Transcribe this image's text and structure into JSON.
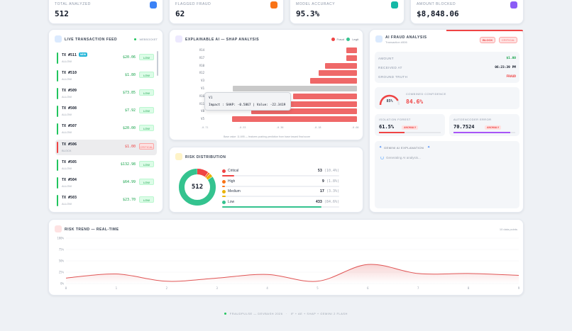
{
  "stats": [
    {
      "label": "TOTAL ANALYZED",
      "value": "512",
      "color": "#3b82f6"
    },
    {
      "label": "FLAGGED FRAUD",
      "value": "62",
      "color": "#f97316"
    },
    {
      "label": "MODEL ACCURACY",
      "value": "95.3%",
      "color": "#14b8a6"
    },
    {
      "label": "AMOUNT BLOCKED",
      "value": "$8,848.06",
      "color": "#8b5cf6"
    }
  ],
  "feed": {
    "title": "LIVE TRANSACTION FEED",
    "status": "WEBSOCKET",
    "items": [
      {
        "id": "TX #511",
        "status": "ALLOW",
        "amount": "$20.06",
        "risk": "LOW",
        "new": "NEW"
      },
      {
        "id": "TX #510",
        "status": "ALLOW",
        "amount": "$1.80",
        "risk": "LOW"
      },
      {
        "id": "TX #509",
        "status": "ALLOW",
        "amount": "$73.85",
        "risk": "LOW"
      },
      {
        "id": "TX #508",
        "status": "ALLOW",
        "amount": "$7.92",
        "risk": "LOW"
      },
      {
        "id": "TX #507",
        "status": "ALLOW",
        "amount": "$20.00",
        "risk": "LOW"
      },
      {
        "id": "TX #506",
        "status": "BLOCK",
        "amount": "$1.00",
        "risk": "CRITICAL"
      },
      {
        "id": "TX #505",
        "status": "ALLOW",
        "amount": "$132.98",
        "risk": "LOW"
      },
      {
        "id": "TX #504",
        "status": "ALLOW",
        "amount": "$64.99",
        "risk": "LOW"
      },
      {
        "id": "TX #503",
        "status": "ALLOW",
        "amount": "$23.70",
        "risk": "LOW"
      }
    ]
  },
  "shap": {
    "title": "EXPLAINABLE AI — SHAP ANALYSIS",
    "legend": [
      "Fraud",
      "Legit"
    ],
    "features": [
      "V14",
      "V17",
      "V10",
      "V12",
      "V3",
      "V1",
      "V16",
      "V11",
      "V8",
      "V5"
    ],
    "values": [
      -0.05,
      -0.05,
      -0.15,
      -0.18,
      -0.22,
      -0.5867,
      -0.3,
      -0.45,
      -0.5,
      -0.59
    ],
    "xticks": [
      "-0.71",
      "-0.53",
      "-0.36",
      "-0.18",
      "-0.00"
    ],
    "xlim": [
      -0.71,
      0
    ],
    "footnote": "Base value: 11.695 — features pushing prediction from base toward final score",
    "tooltip": {
      "feature": "V1",
      "detail": "Impact : SHAP: -0.5867 | Value: -22.3419"
    }
  },
  "detail": {
    "title": "AI FRAUD ANALYSIS",
    "subtitle": "Transaction #506",
    "badges": [
      "BLOCK",
      "CRITICAL"
    ],
    "rows": [
      {
        "key": "AMOUNT",
        "value": "$1.00",
        "color": "#16a34a"
      },
      {
        "key": "RECEIVED AT",
        "value": "06:23:39 PM",
        "color": "#111827"
      },
      {
        "key": "GROUND TRUTH",
        "value": "FRAUD",
        "color": "#ef4444"
      }
    ],
    "confidence": {
      "gauge": "85%",
      "label": "COMBINED CONFIDENCE",
      "value": "84.6%",
      "fraction": 0.846
    },
    "iso": {
      "label": "ISOLATION FOREST",
      "value": "61.5%",
      "tag": "ANOMALY",
      "fraction": 0.615
    },
    "ae": {
      "label": "AUTOENCODER ERROR",
      "value": "70.7524",
      "tag": "ANOMALY",
      "fraction": 0.92
    },
    "gemini": {
      "title": "GEMINI AI EXPLANATION",
      "status": "Generating AI analysis..."
    }
  },
  "distribution": {
    "title": "RISK DISTRIBUTION",
    "total": "512",
    "items": [
      {
        "name": "Critical",
        "count": "53",
        "pct": "(10.4%)",
        "fraction": 0.104,
        "color": "#ef4444"
      },
      {
        "name": "High",
        "count": "9",
        "pct": "(1.8%)",
        "fraction": 0.018,
        "color": "#f97316"
      },
      {
        "name": "Medium",
        "count": "17",
        "pct": "(3.3%)",
        "fraction": 0.033,
        "color": "#eab308"
      },
      {
        "name": "Low",
        "count": "433",
        "pct": "(84.6%)",
        "fraction": 0.846,
        "color": "#34c38f"
      }
    ]
  },
  "trend": {
    "title": "RISK TREND — REAL-TIME",
    "points_label": "10 data points"
  },
  "chart_data": {
    "type": "area",
    "title": "RISK TREND — REAL-TIME",
    "x": [
      0,
      1,
      2,
      3,
      4,
      5,
      6,
      7,
      8,
      9
    ],
    "values": [
      12,
      21,
      5,
      12,
      20,
      5,
      42,
      22,
      22,
      18
    ],
    "yticks": [
      "100%",
      "75%",
      "50%",
      "25%",
      "0%"
    ],
    "ylim": [
      0,
      100
    ],
    "color": "#e05555",
    "grid": true
  },
  "footer": {
    "brand": "FRAUDPULSE — DEVBASH 2026",
    "note": "IF + AE + SHAP + GEMINI 2 FLASH"
  }
}
